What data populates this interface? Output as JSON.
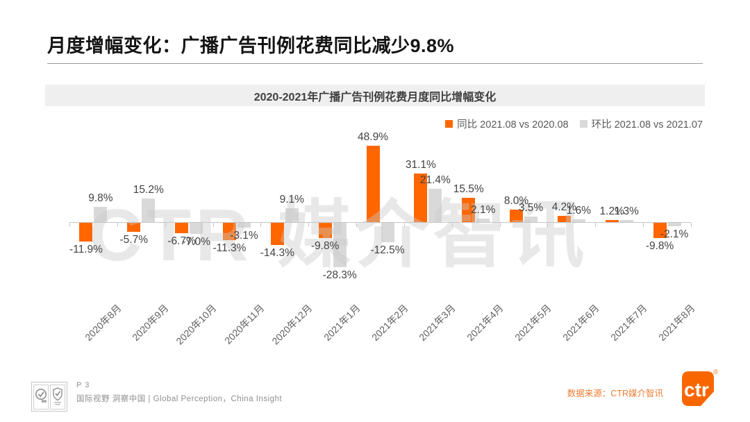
{
  "header": {
    "title": "月度增幅变化：广播广告刊例花费同比减少9.8%"
  },
  "chart": {
    "band_title": "2020-2021年广播广告刊例花费月度同比增幅变化",
    "watermark": "CTR 媒介智讯"
  },
  "chart_data": {
    "type": "bar",
    "title": "2020-2021年广播广告刊例花费月度同比增幅变化",
    "categories": [
      "2020年8月",
      "2020年9月",
      "2020年10月",
      "2020年11月",
      "2020年12月",
      "2021年1月",
      "2021年2月",
      "2021年3月",
      "2021年4月",
      "2021年5月",
      "2021年6月",
      "2021年7月",
      "2021年8月"
    ],
    "series": [
      {
        "name": "同比 2021.08 vs 2020.08",
        "color": "#FF6600",
        "values": [
          -11.9,
          -5.7,
          -6.7,
          -11.3,
          -14.3,
          -9.8,
          48.9,
          31.1,
          15.5,
          8.0,
          4.2,
          1.2,
          -9.8
        ],
        "labels": [
          "-11.9%",
          "-5.7%",
          "-6.7%",
          "-11.3%",
          "-14.3%",
          "-9.8%",
          "48.9%",
          "31.1%",
          "15.5%",
          "8.0%",
          "4.2%",
          "1.2%",
          "-9.8%"
        ]
      },
      {
        "name": "环比 2021.08 vs 2021.07",
        "color": "#D9D9D9",
        "values": [
          9.8,
          15.2,
          -7.0,
          -3.1,
          9.1,
          -28.3,
          -12.5,
          21.4,
          2.1,
          3.5,
          1.6,
          1.3,
          -2.1
        ],
        "labels": [
          "9.8%",
          "15.2%",
          "-7.0%",
          "-3.1%",
          "9.1%",
          "-28.3%",
          "-12.5%",
          "21.4%",
          "2.1%",
          "3.5%",
          "1.6%",
          "1.3%",
          "-2.1%"
        ]
      }
    ],
    "value_suffix": "%",
    "ylim": [
      -35,
      55
    ],
    "grid": false,
    "legend_position": "top-right",
    "data_labels": true
  },
  "footer": {
    "page_label": "P 3",
    "tagline": "国际视野  洞察中国 | Global Perception，China Insight",
    "source": "数据来源：CTR媒介智讯",
    "logo_text": "ctr",
    "registered_mark": "®"
  },
  "colors": {
    "accent_orange": "#FF6600",
    "bar_gray": "#D9D9D9",
    "source_orange": "#ED7D31",
    "band_gray": "#EFEFEF"
  }
}
